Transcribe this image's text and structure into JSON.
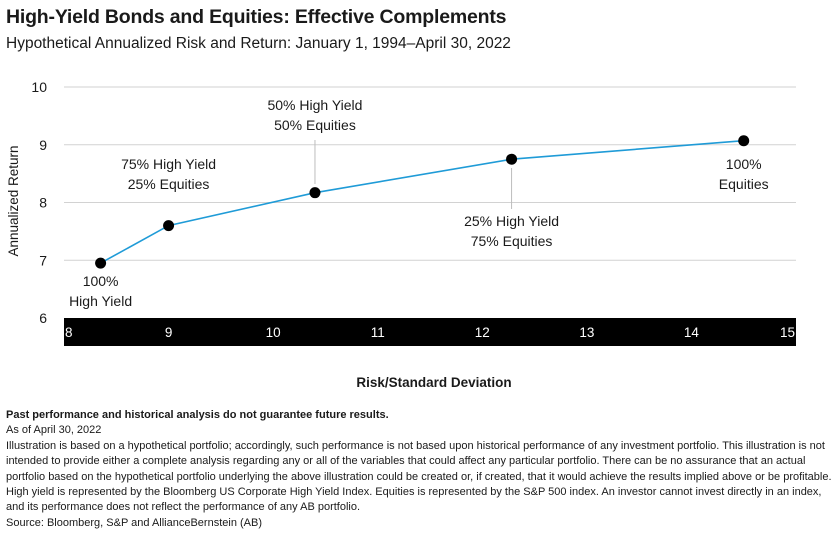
{
  "chart_data": {
    "type": "line",
    "title": "High-Yield Bonds and Equities: Effective Complements",
    "subtitle": "Hypothetical Annualized Risk and Return: January 1, 1994–April 30, 2022",
    "xlabel": "Risk/Standard Deviation",
    "ylabel": "Annualized Return",
    "xlim": [
      8,
      15
    ],
    "ylim": [
      6,
      10
    ],
    "x_ticks": [
      "8",
      "9",
      "10",
      "11",
      "12",
      "13",
      "14",
      "15"
    ],
    "y_ticks": [
      "6",
      "7",
      "8",
      "9",
      "10"
    ],
    "grid": "horizontal",
    "line_color": "#1f9bd7",
    "marker_color": "#000000",
    "axis_band_color": "#000000",
    "points": [
      {
        "x": 8.35,
        "y": 6.95,
        "label": [
          "100%",
          "High Yield"
        ]
      },
      {
        "x": 9.0,
        "y": 7.6,
        "label": [
          "75% High Yield",
          "25% Equities"
        ]
      },
      {
        "x": 10.4,
        "y": 8.17,
        "label": [
          "50% High Yield",
          "50% Equities"
        ]
      },
      {
        "x": 12.28,
        "y": 8.75,
        "label": [
          "25% High Yield",
          "75% Equities"
        ]
      },
      {
        "x": 14.5,
        "y": 9.07,
        "label": [
          "100%",
          "Equities"
        ]
      }
    ]
  },
  "notes": {
    "disclaimer": "Past performance and historical analysis do not guarantee future results.",
    "as_of": "As of April 30, 2022",
    "body": "Illustration is based on a hypothetical portfolio; accordingly, such performance is not based upon historical performance of any investment portfolio. This illustration is not intended to provide either a complete analysis regarding any or all of the variables that could affect any particular portfolio. There can be no assurance that an actual portfolio based on the hypothetical portfolio underlying the above illustration could be created or, if created, that it would achieve the results implied above or be profitable. High yield is represented by the Bloomberg US Corporate High Yield Index. Equities is represented by the S&P 500 index. An investor cannot invest directly in an index, and its performance does not reflect the performance of any AB portfolio.",
    "source": "Source: Bloomberg, S&P and AllianceBernstein (AB)"
  }
}
